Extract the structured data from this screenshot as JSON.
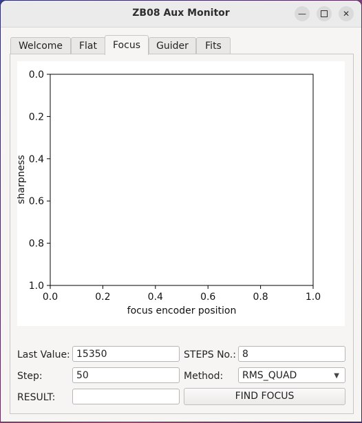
{
  "window": {
    "title": "ZB08 Aux Monitor",
    "minimize_icon": "minimize-icon",
    "maximize_icon": "maximize-icon",
    "close_icon": "close-icon"
  },
  "tabs": [
    {
      "label": "Welcome",
      "active": false
    },
    {
      "label": "Flat",
      "active": false
    },
    {
      "label": "Focus",
      "active": true
    },
    {
      "label": "Guider",
      "active": false
    },
    {
      "label": "Fits",
      "active": false
    }
  ],
  "chart_data": {
    "type": "line",
    "title": "",
    "xlabel": "focus encoder position",
    "ylabel": "sharpness",
    "xlim": [
      0.0,
      1.0
    ],
    "ylim": [
      0.0,
      1.0
    ],
    "y_inverted": true,
    "x_ticks": [
      "0.0",
      "0.2",
      "0.4",
      "0.6",
      "0.8",
      "1.0"
    ],
    "y_ticks": [
      "0.0",
      "0.2",
      "0.4",
      "0.6",
      "0.8",
      "1.0"
    ],
    "series": [],
    "grid": false
  },
  "form": {
    "last_value_label": "Last Value:",
    "last_value": "15350",
    "steps_label": "STEPS No.:",
    "steps": "8",
    "step_label": "Step:",
    "step": "50",
    "method_label": "Method:",
    "method": "RMS_QUAD",
    "result_label": "RESULT:",
    "result": "",
    "find_focus_label": "FIND FOCUS"
  }
}
